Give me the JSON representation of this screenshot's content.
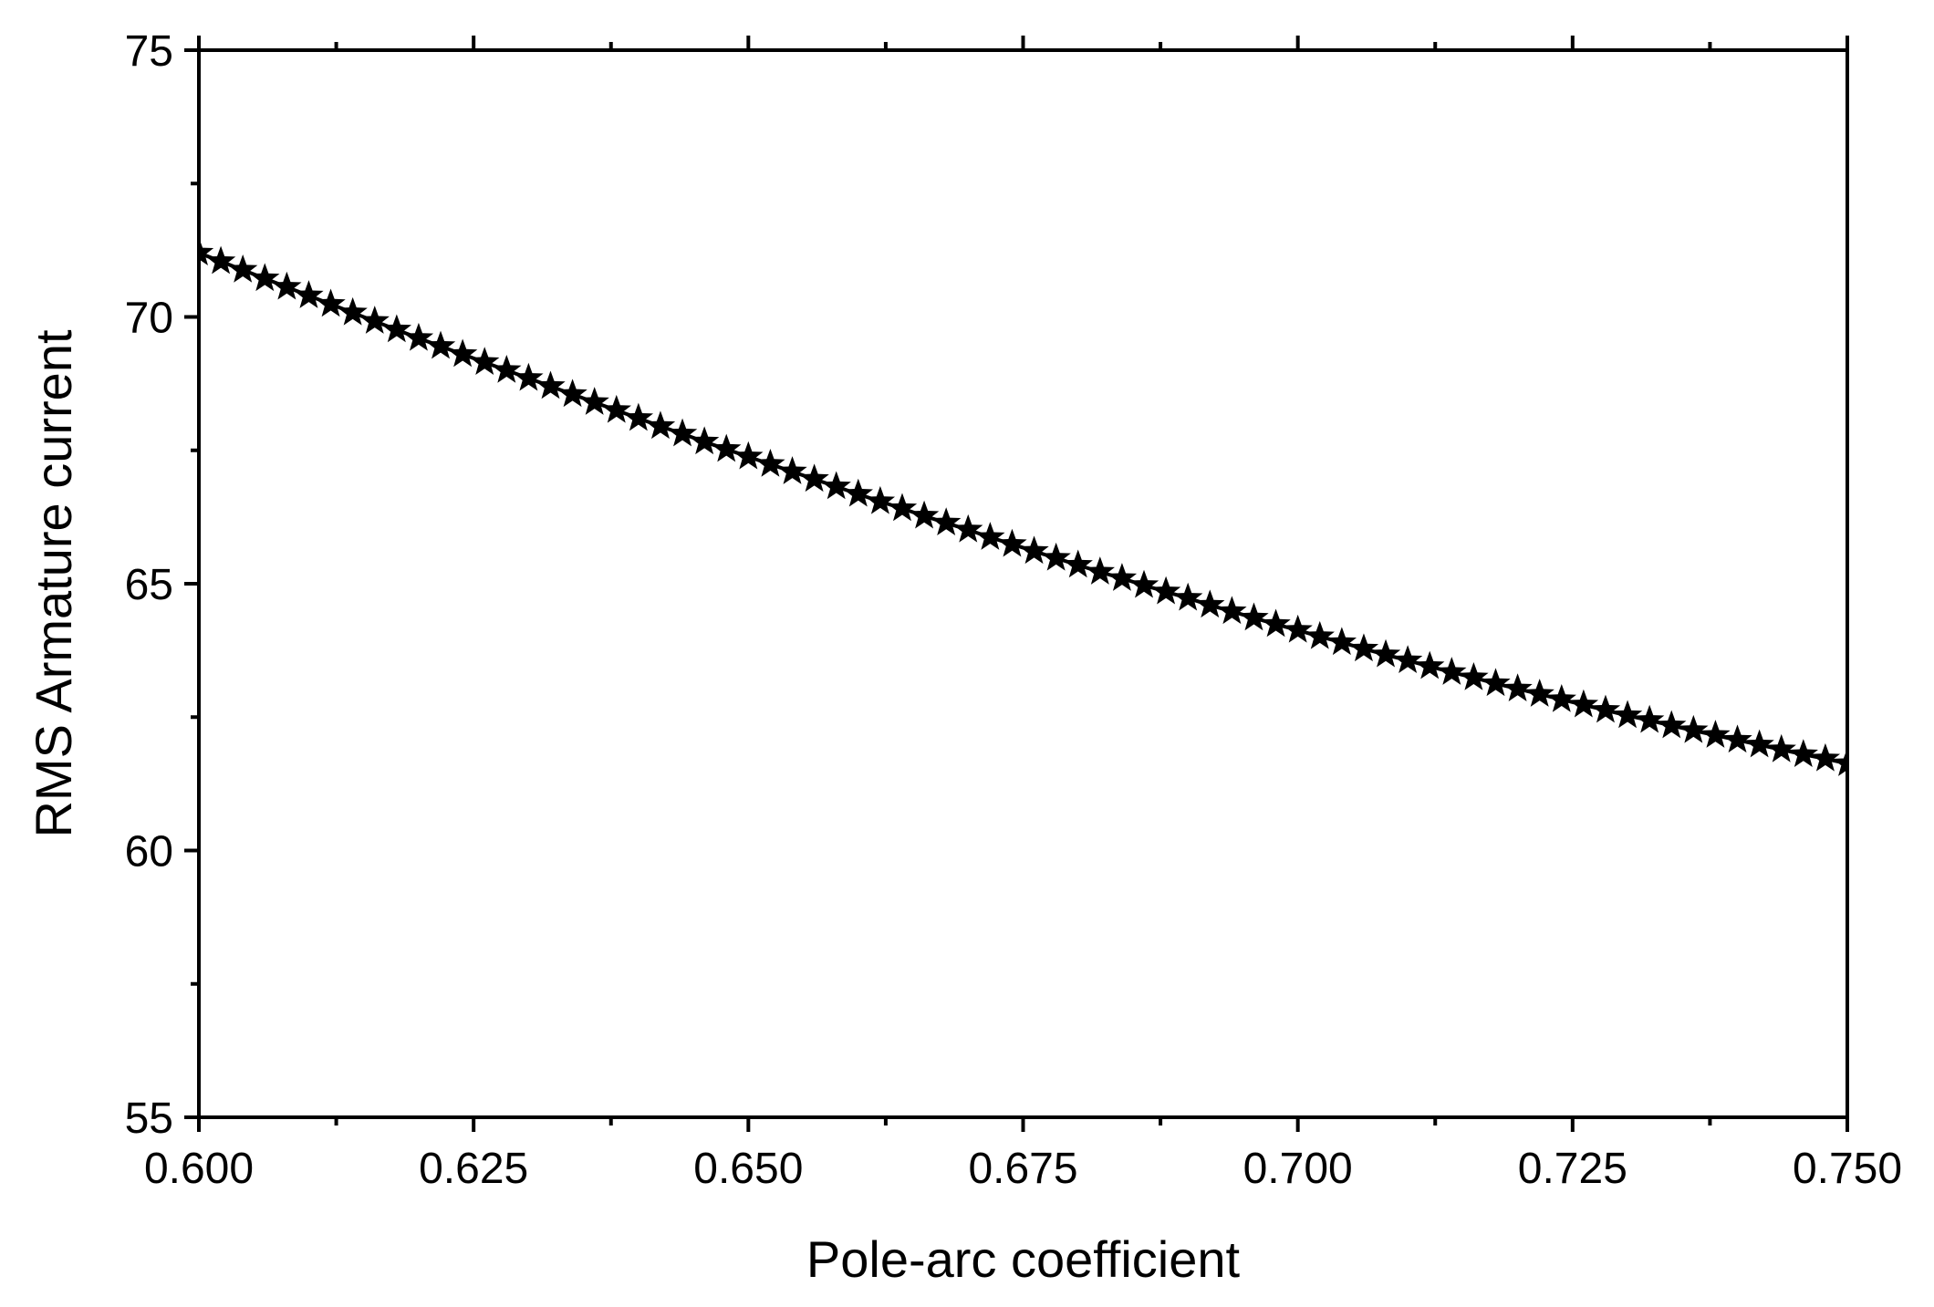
{
  "chart_data": {
    "type": "scatter",
    "title": "",
    "xlabel": "Pole-arc coefficient",
    "ylabel": "RMS Armature current",
    "xlim": [
      0.6,
      0.75
    ],
    "ylim": [
      55,
      75
    ],
    "x_ticks": [
      "0.600",
      "0.625",
      "0.650",
      "0.675",
      "0.700",
      "0.725",
      "0.750"
    ],
    "y_ticks": [
      "55",
      "60",
      "65",
      "70",
      "75"
    ],
    "x_tick_values": [
      0.6,
      0.625,
      0.65,
      0.675,
      0.7,
      0.725,
      0.75
    ],
    "y_tick_values": [
      55,
      60,
      65,
      70,
      75
    ],
    "grid": false,
    "legend": "none",
    "marker": "star",
    "marker_color": "#000000",
    "line_color": "#000000",
    "series": [
      {
        "x": [
          0.6,
          0.602,
          0.604,
          0.606,
          0.608,
          0.61,
          0.612,
          0.614,
          0.616,
          0.618,
          0.62,
          0.622,
          0.624,
          0.626,
          0.628,
          0.63,
          0.632,
          0.634,
          0.636,
          0.638,
          0.64,
          0.642,
          0.644,
          0.646,
          0.648,
          0.65,
          0.652,
          0.654,
          0.656,
          0.658,
          0.66,
          0.662,
          0.664,
          0.666,
          0.668,
          0.67,
          0.672,
          0.674,
          0.676,
          0.678,
          0.68,
          0.682,
          0.684,
          0.686,
          0.688,
          0.69,
          0.692,
          0.694,
          0.696,
          0.698,
          0.7,
          0.702,
          0.704,
          0.706,
          0.708,
          0.71,
          0.712,
          0.714,
          0.716,
          0.718,
          0.72,
          0.722,
          0.724,
          0.726,
          0.728,
          0.73,
          0.732,
          0.734,
          0.736,
          0.738,
          0.74,
          0.742,
          0.744,
          0.746,
          0.748,
          0.75
        ],
        "y": [
          71.2,
          71.04,
          70.88,
          70.72,
          70.56,
          70.4,
          70.24,
          70.08,
          69.92,
          69.76,
          69.6,
          69.45,
          69.3,
          69.15,
          69.0,
          68.85,
          68.7,
          68.55,
          68.4,
          68.25,
          68.1,
          67.95,
          67.81,
          67.66,
          67.52,
          67.38,
          67.24,
          67.1,
          66.96,
          66.82,
          66.68,
          66.54,
          66.41,
          66.27,
          66.14,
          66.01,
          65.87,
          65.74,
          65.61,
          65.48,
          65.35,
          65.22,
          65.1,
          64.97,
          64.85,
          64.73,
          64.6,
          64.48,
          64.36,
          64.24,
          64.13,
          64.01,
          63.9,
          63.78,
          63.67,
          63.56,
          63.45,
          63.34,
          63.24,
          63.13,
          63.03,
          62.93,
          62.83,
          62.73,
          62.63,
          62.53,
          62.44,
          62.34,
          62.25,
          62.16,
          62.07,
          61.98,
          61.89,
          61.8,
          61.72,
          61.63
        ]
      }
    ]
  }
}
